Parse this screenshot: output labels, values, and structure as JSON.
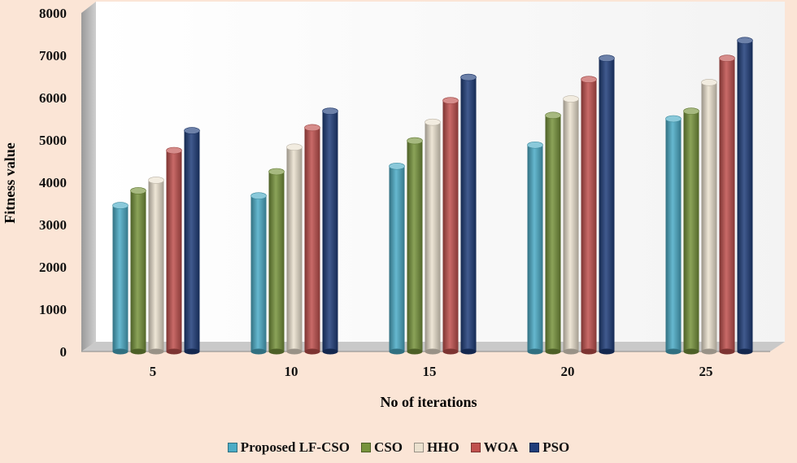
{
  "chart_data": {
    "type": "bar",
    "xlabel": "No of iterations",
    "ylabel": "Fitness value",
    "ylim": [
      0,
      8000
    ],
    "yticks": [
      0,
      1000,
      2000,
      3000,
      4000,
      5000,
      6000,
      7000,
      8000
    ],
    "categories": [
      "5",
      "10",
      "15",
      "20",
      "25"
    ],
    "series": [
      {
        "name": "Proposed LF-CSO",
        "color": "#4bacc6",
        "values": [
          3450,
          3680,
          4380,
          4880,
          5500
        ]
      },
      {
        "name": "CSO",
        "color": "#77933c",
        "values": [
          3800,
          4250,
          4980,
          5580,
          5680
        ]
      },
      {
        "name": "HHO",
        "color": "#ebe1cf",
        "values": [
          4050,
          4830,
          5420,
          5970,
          6360
        ]
      },
      {
        "name": "WOA",
        "color": "#c0504d",
        "values": [
          4750,
          5290,
          5930,
          6430,
          6930
        ]
      },
      {
        "name": "PSO",
        "color": "#1f3d7a",
        "values": [
          5220,
          5680,
          6480,
          6930,
          7350
        ]
      }
    ],
    "legend_position": "bottom"
  }
}
